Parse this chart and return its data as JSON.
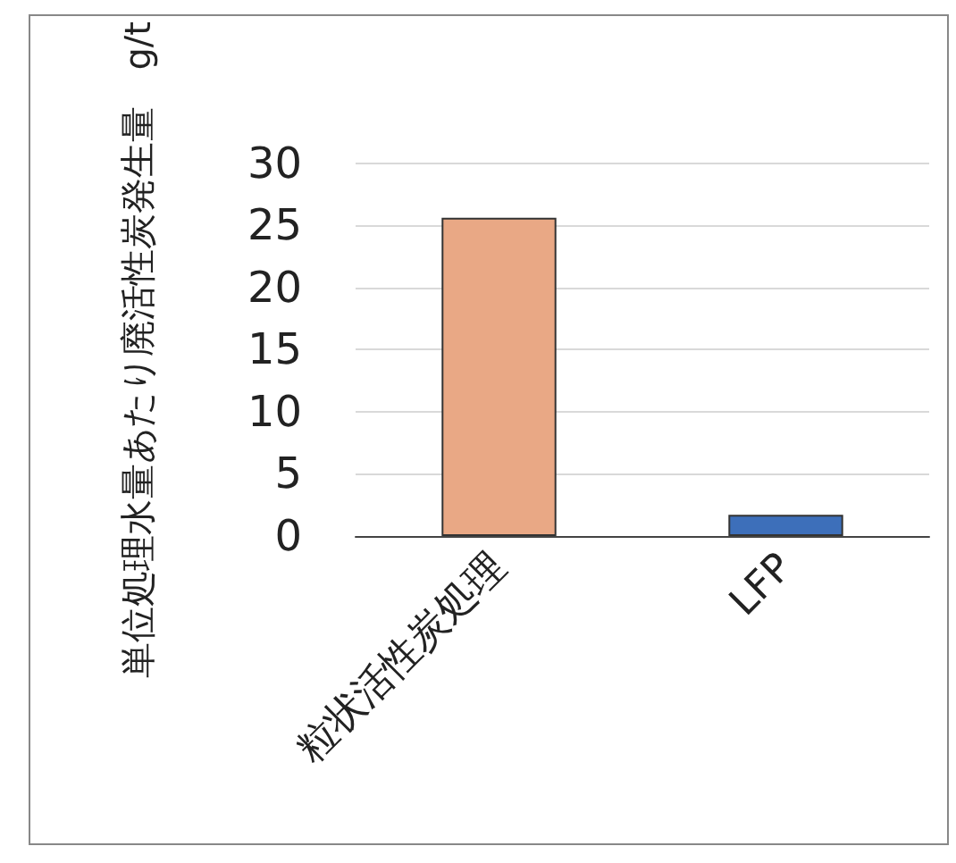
{
  "chart_data": {
    "type": "bar",
    "ylabel": "単位処理水量あたり廃活性炭発生量　g/t",
    "categories": [
      "粒状活性炭処理",
      "LFP"
    ],
    "values": [
      25.6,
      1.7
    ],
    "colors": [
      "#e9a885",
      "#3d6fba"
    ],
    "ylim": [
      0,
      30
    ],
    "yticks": [
      0,
      5,
      10,
      15,
      20,
      25,
      30
    ],
    "grid": "y"
  }
}
